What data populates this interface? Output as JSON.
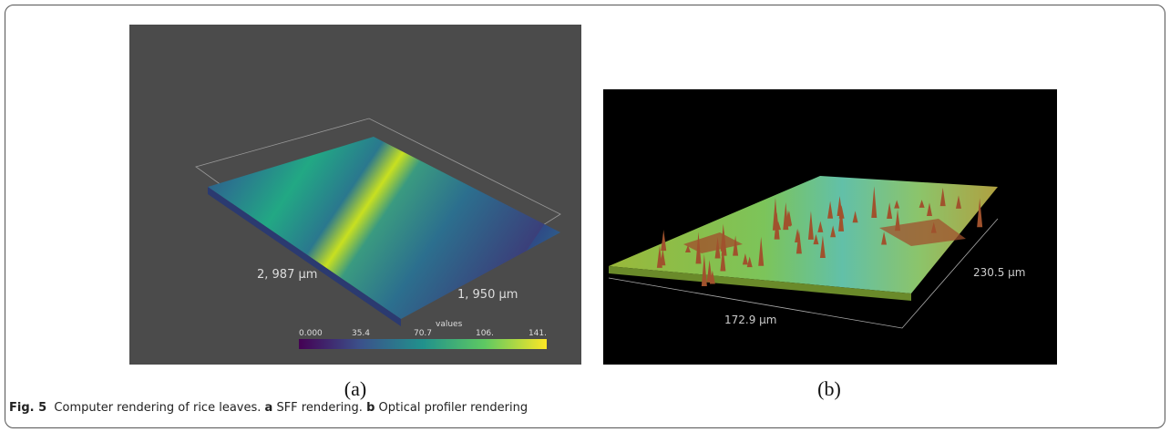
{
  "panel_a": {
    "width_label": "2, 987 μm",
    "depth_label": "1, 950 μm",
    "colorbar": {
      "title": "values",
      "ticks": [
        "0.000",
        "35.4",
        "70.7",
        "106.",
        "141."
      ]
    },
    "label": "(a)"
  },
  "panel_b": {
    "depth_label": "230.5 μm",
    "width_label": "172.9 μm",
    "label": "(b)"
  },
  "caption": {
    "figure": "Fig. 5",
    "text": "Computer rendering of rice leaves.",
    "parts": [
      {
        "letter": "a",
        "text": "SFF rendering."
      },
      {
        "letter": "b",
        "text": "Optical profiler rendering"
      }
    ]
  }
}
